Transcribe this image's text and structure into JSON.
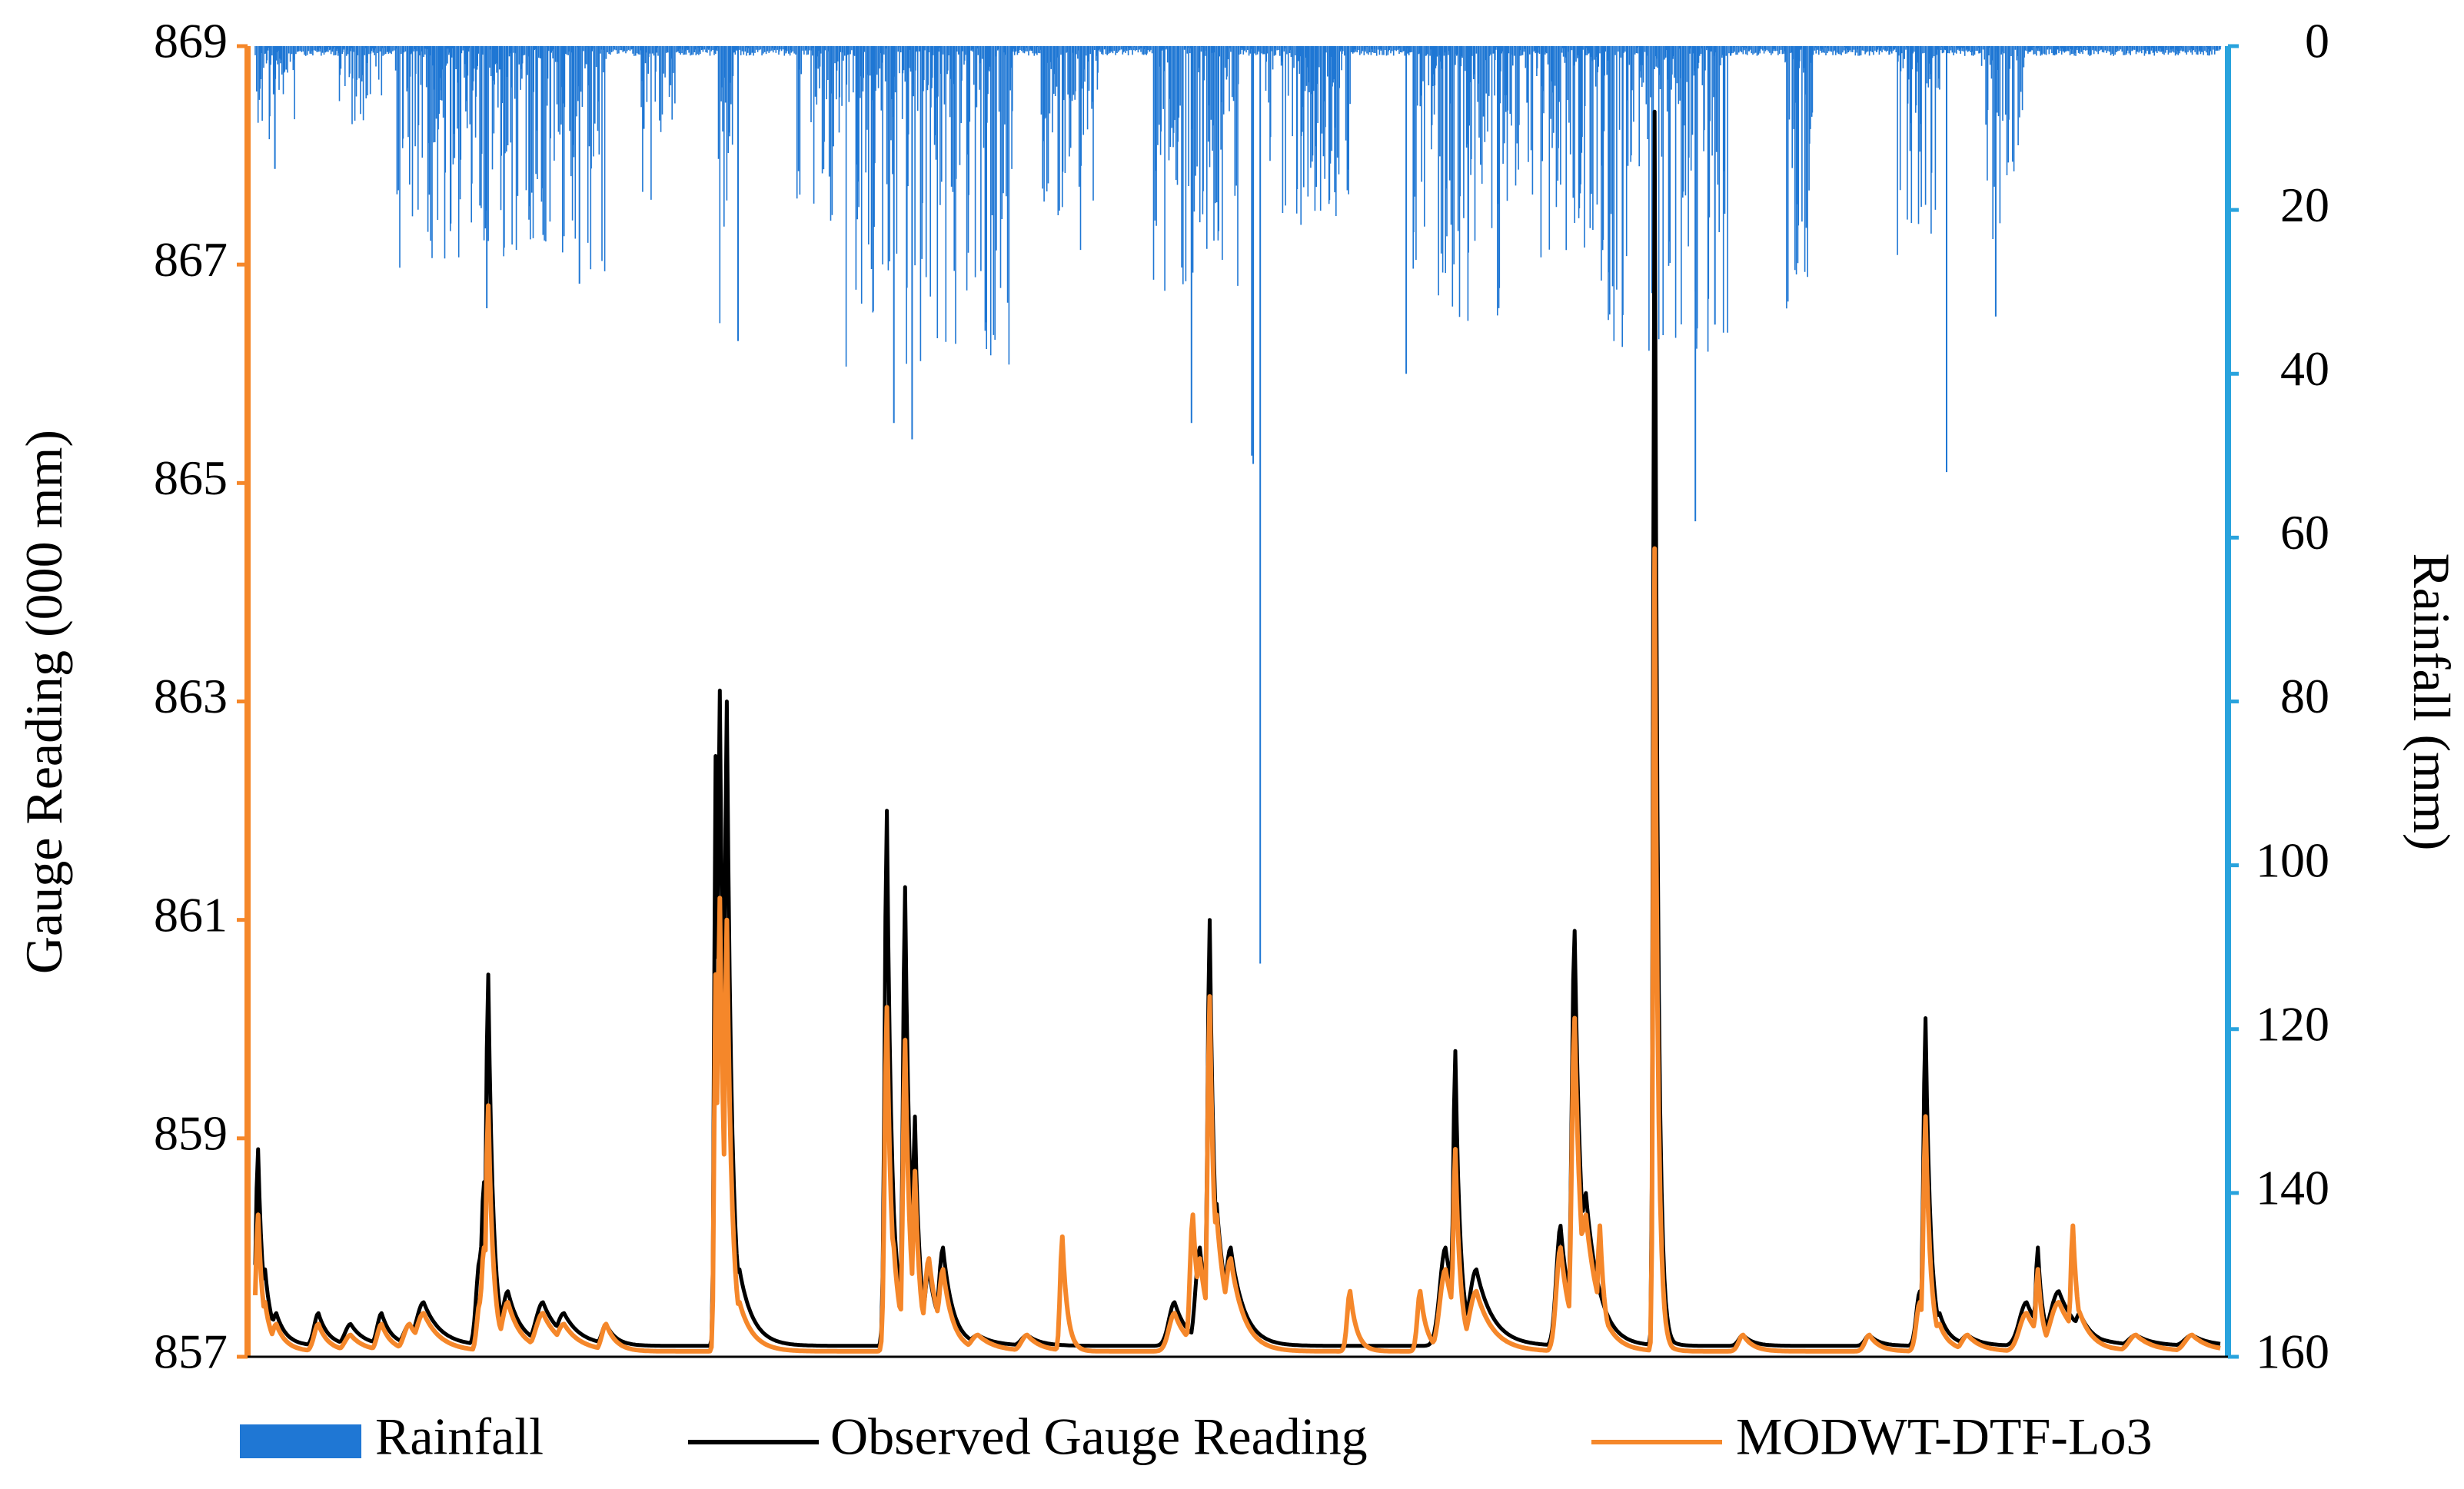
{
  "chart_data": {
    "type": "line",
    "title": "",
    "xlabel": "",
    "ylabel": "Gauge Reading (000 mm)",
    "y2label": "Rainfall (mm)",
    "ylim": [
      857,
      869
    ],
    "y2lim": [
      160,
      0
    ],
    "y_ticks": [
      "857",
      "859",
      "861",
      "863",
      "865",
      "867",
      "869"
    ],
    "y2_ticks": [
      "0",
      "20",
      "40",
      "60",
      "80",
      "100",
      "120",
      "140",
      "160"
    ],
    "x_range": [
      0,
      1000
    ],
    "colors": {
      "rainfall": "#1f77d4",
      "observed": "#000000",
      "model": "#f5872a",
      "left_axis": "#f5872a",
      "right_axis": "#29a3dd"
    },
    "legend": {
      "position": "bottom",
      "entries": [
        "Rainfall",
        "Observed Gauge Reading",
        "MODWT-DTF-Lo3"
      ]
    },
    "series": [
      {
        "name": "Observed Gauge Reading",
        "axis": "left",
        "baseline": 857.1,
        "peaks": [
          [
            2,
            858.9,
            3
          ],
          [
            7,
            857.8,
            4
          ],
          [
            15,
            857.4,
            6
          ],
          [
            45,
            857.4,
            6
          ],
          [
            68,
            857.3,
            8
          ],
          [
            90,
            857.4,
            6
          ],
          [
            110,
            857.3,
            8
          ],
          [
            120,
            857.5,
            10
          ],
          [
            160,
            857.9,
            5
          ],
          [
            163,
            858.6,
            4
          ],
          [
            166,
            860.5,
            3
          ],
          [
            180,
            857.6,
            8
          ],
          [
            205,
            857.5,
            10
          ],
          [
            220,
            857.4,
            10
          ],
          [
            250,
            857.3,
            6
          ],
          [
            328,
            862.5,
            2
          ],
          [
            331,
            863.1,
            3
          ],
          [
            336,
            863.0,
            3
          ],
          [
            345,
            857.8,
            8
          ],
          [
            450,
            862.0,
            3
          ],
          [
            455,
            858.3,
            4
          ],
          [
            463,
            861.3,
            3
          ],
          [
            470,
            859.2,
            3
          ],
          [
            480,
            857.8,
            6
          ],
          [
            490,
            858.0,
            6
          ],
          [
            515,
            857.2,
            10
          ],
          [
            550,
            857.2,
            8
          ],
          [
            655,
            857.5,
            8
          ],
          [
            673,
            858.0,
            6
          ],
          [
            680,
            861.0,
            3
          ],
          [
            685,
            858.4,
            6
          ],
          [
            695,
            858.0,
            8
          ],
          [
            848,
            858.0,
            8
          ],
          [
            855,
            859.8,
            3
          ],
          [
            870,
            857.8,
            10
          ],
          [
            930,
            858.2,
            6
          ],
          [
            940,
            860.9,
            4
          ],
          [
            948,
            858.5,
            8
          ],
          [
            997,
            868.4,
            2
          ],
          [
            1000,
            857.4,
            4
          ],
          [
            1060,
            857.2,
            6
          ],
          [
            1150,
            857.2,
            6
          ],
          [
            1186,
            857.6,
            5
          ],
          [
            1190,
            860.1,
            3
          ],
          [
            1200,
            857.4,
            6
          ],
          [
            1220,
            857.2,
            8
          ],
          [
            1262,
            857.5,
            10
          ],
          [
            1270,
            858.0,
            3
          ],
          [
            1285,
            857.6,
            12
          ],
          [
            1300,
            857.4,
            8
          ],
          [
            1340,
            857.2,
            10
          ],
          [
            1380,
            857.2,
            10
          ]
        ]
      },
      {
        "name": "MODWT-DTF-Lo3",
        "axis": "left",
        "baseline": 857.05,
        "peaks": [
          [
            2,
            858.3,
            3
          ],
          [
            7,
            857.5,
            4
          ],
          [
            15,
            857.3,
            6
          ],
          [
            45,
            857.3,
            6
          ],
          [
            68,
            857.2,
            8
          ],
          [
            90,
            857.3,
            6
          ],
          [
            110,
            857.3,
            8
          ],
          [
            120,
            857.4,
            10
          ],
          [
            160,
            857.5,
            4
          ],
          [
            163,
            858.0,
            4
          ],
          [
            166,
            859.3,
            3
          ],
          [
            180,
            857.5,
            8
          ],
          [
            205,
            857.4,
            10
          ],
          [
            220,
            857.3,
            10
          ],
          [
            250,
            857.3,
            6
          ],
          [
            328,
            860.5,
            2
          ],
          [
            331,
            861.2,
            3
          ],
          [
            336,
            861.0,
            3
          ],
          [
            345,
            857.5,
            8
          ],
          [
            450,
            860.2,
            3
          ],
          [
            455,
            858.0,
            4
          ],
          [
            463,
            859.9,
            3
          ],
          [
            470,
            858.7,
            3
          ],
          [
            480,
            857.9,
            6
          ],
          [
            490,
            857.8,
            6
          ],
          [
            515,
            857.2,
            10
          ],
          [
            550,
            857.2,
            8
          ],
          [
            575,
            858.1,
            3
          ],
          [
            655,
            857.4,
            8
          ],
          [
            668,
            858.3,
            4
          ],
          [
            673,
            857.9,
            6
          ],
          [
            680,
            860.3,
            3
          ],
          [
            685,
            858.3,
            6
          ],
          [
            695,
            857.9,
            8
          ],
          [
            780,
            857.6,
            4
          ],
          [
            830,
            857.6,
            4
          ],
          [
            848,
            857.8,
            8
          ],
          [
            855,
            858.9,
            3
          ],
          [
            870,
            857.6,
            10
          ],
          [
            930,
            858.0,
            6
          ],
          [
            940,
            860.1,
            4
          ],
          [
            948,
            858.3,
            8
          ],
          [
            958,
            858.2,
            3
          ],
          [
            997,
            864.4,
            2
          ],
          [
            1000,
            857.3,
            4
          ],
          [
            1060,
            857.2,
            6
          ],
          [
            1150,
            857.2,
            6
          ],
          [
            1186,
            857.5,
            5
          ],
          [
            1190,
            859.2,
            3
          ],
          [
            1200,
            857.3,
            6
          ],
          [
            1220,
            857.2,
            8
          ],
          [
            1262,
            857.4,
            10
          ],
          [
            1270,
            857.8,
            3
          ],
          [
            1285,
            857.5,
            12
          ],
          [
            1295,
            858.2,
            3
          ],
          [
            1300,
            857.4,
            8
          ],
          [
            1340,
            857.2,
            10
          ],
          [
            1380,
            857.2,
            10
          ]
        ]
      },
      {
        "name": "Rainfall",
        "axis": "right",
        "type": "bar",
        "clusters": [
          [
            0,
            30,
            12
          ],
          [
            60,
            90,
            10
          ],
          [
            100,
            160,
            28
          ],
          [
            160,
            250,
            30
          ],
          [
            275,
            300,
            20
          ],
          [
            330,
            340,
            36
          ],
          [
            385,
            420,
            22
          ],
          [
            420,
            540,
            40
          ],
          [
            560,
            600,
            26
          ],
          [
            640,
            700,
            30
          ],
          [
            720,
            780,
            22
          ],
          [
            825,
            900,
            36
          ],
          [
            905,
            960,
            30
          ],
          [
            960,
            1050,
            40
          ],
          [
            1090,
            1110,
            34
          ],
          [
            1170,
            1200,
            30
          ],
          [
            1230,
            1260,
            24
          ]
        ],
        "spikes": [
          [
            14,
            15
          ],
          [
            165,
            32
          ],
          [
            231,
            29
          ],
          [
            344,
            36
          ],
          [
            455,
            46
          ],
          [
            468,
            48
          ],
          [
            667,
            46
          ],
          [
            710,
            50
          ],
          [
            711,
            51
          ],
          [
            716,
            112
          ],
          [
            820,
            40
          ],
          [
            1026,
            58
          ],
          [
            1040,
            34
          ],
          [
            1205,
            52
          ],
          [
            1240,
            33
          ]
        ]
      }
    ]
  }
}
